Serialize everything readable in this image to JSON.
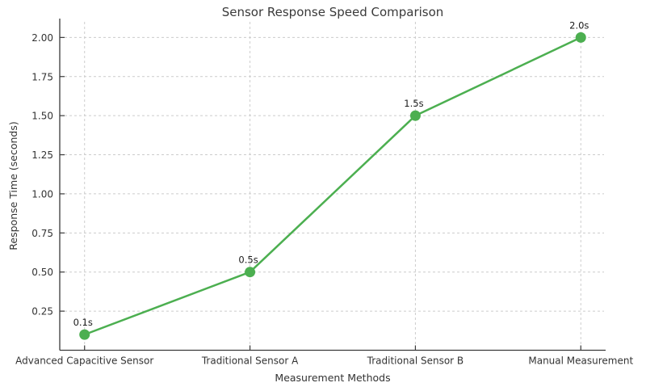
{
  "chart_data": {
    "type": "line",
    "title": "Sensor Response Speed Comparison",
    "xlabel": "Measurement Methods",
    "ylabel": "Response Time (seconds)",
    "categories": [
      "Advanced Capacitive Sensor",
      "Traditional Sensor A",
      "Traditional Sensor B",
      "Manual Measurement"
    ],
    "values": [
      0.1,
      0.5,
      1.5,
      2.0
    ],
    "point_labels": [
      "0.1s",
      "0.5s",
      "1.5s",
      "2.0s"
    ],
    "yticks": [
      0.25,
      0.5,
      0.75,
      1.0,
      1.25,
      1.5,
      1.75,
      2.0
    ],
    "ytick_labels": [
      "0.25",
      "0.50",
      "0.75",
      "1.00",
      "1.25",
      "1.50",
      "1.75",
      "2.00"
    ],
    "ylim": [
      0,
      2.1
    ],
    "grid": "dashed, both axes",
    "legend": "none",
    "colors": {
      "line": "#4caf50",
      "marker": "#4caf50",
      "grid": "#cccccc",
      "spine": "#3a3a3a",
      "text": "#333333",
      "annotation": "#1a1a1a",
      "background": "#ffffff"
    }
  }
}
